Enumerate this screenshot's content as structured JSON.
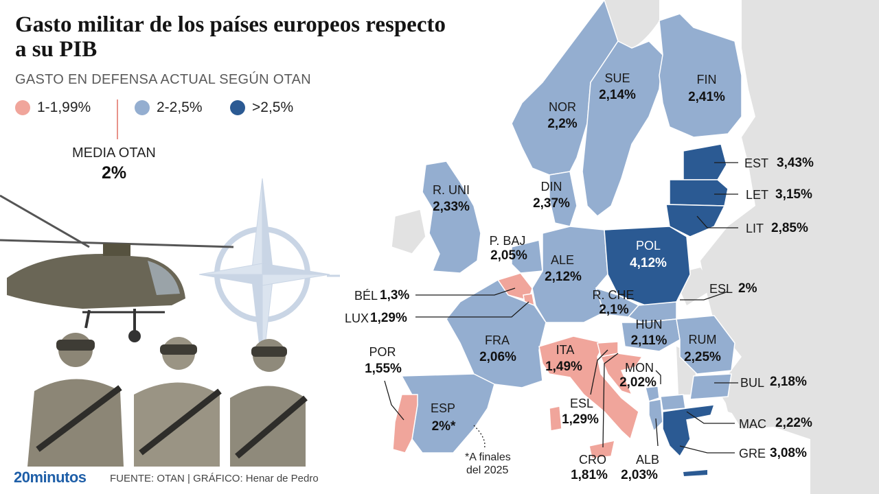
{
  "title": "Gasto militar de los países europeos respecto a su PIB",
  "subtitle": "GASTO EN DEFENSA ACTUAL SEGÚN OTAN",
  "legend": [
    {
      "label": "1-1,99%",
      "color": "#f0a59b"
    },
    {
      "label": "2-2,5%",
      "color": "#94aed0"
    },
    {
      "label": ">2,5%",
      "color": "#2b5a93"
    }
  ],
  "average": {
    "label": "MEDIA OTAN",
    "value": "2%"
  },
  "colors": {
    "low": "#f0a59b",
    "mid": "#94aed0",
    "high": "#2b5a93",
    "land": "#e2e2e2",
    "leader": "#1a1a1a"
  },
  "countries": [
    {
      "code": "NOR",
      "value": "2,2%",
      "category": "mid"
    },
    {
      "code": "SUE",
      "value": "2,14%",
      "category": "mid"
    },
    {
      "code": "FIN",
      "value": "2,41%",
      "category": "mid"
    },
    {
      "code": "EST",
      "value": "3,43%",
      "category": "high"
    },
    {
      "code": "LET",
      "value": "3,15%",
      "category": "high"
    },
    {
      "code": "LIT",
      "value": "2,85%",
      "category": "high"
    },
    {
      "code": "R. UNI",
      "value": "2,33%",
      "category": "mid"
    },
    {
      "code": "DIN",
      "value": "2,37%",
      "category": "mid"
    },
    {
      "code": "P. BAJ",
      "value": "2,05%",
      "category": "mid"
    },
    {
      "code": "ALE",
      "value": "2,12%",
      "category": "mid"
    },
    {
      "code": "POL",
      "value": "4,12%",
      "category": "high"
    },
    {
      "code": "BÉL",
      "value": "1,3%",
      "category": "low"
    },
    {
      "code": "LUX",
      "value": "1,29%",
      "category": "low"
    },
    {
      "code": "R. CHE",
      "value": "2,1%",
      "category": "mid"
    },
    {
      "code": "ESL",
      "value": "2%",
      "category": "mid"
    },
    {
      "code": "HUN",
      "value": "2,11%",
      "category": "mid"
    },
    {
      "code": "RUM",
      "value": "2,25%",
      "category": "mid"
    },
    {
      "code": "FRA",
      "value": "2,06%",
      "category": "mid"
    },
    {
      "code": "ITA",
      "value": "1,49%",
      "category": "low"
    },
    {
      "code": "POR",
      "value": "1,55%",
      "category": "low"
    },
    {
      "code": "ESP",
      "value": "2%*",
      "category": "mid"
    },
    {
      "code": "MON",
      "value": "2,02%",
      "category": "mid"
    },
    {
      "code": "BUL",
      "value": "2,18%",
      "category": "mid"
    },
    {
      "code": "ESL",
      "value": "1,29%",
      "category": "low"
    },
    {
      "code": "MAC",
      "value": "2,22%",
      "category": "mid"
    },
    {
      "code": "GRE",
      "value": "3,08%",
      "category": "high"
    },
    {
      "code": "CRO",
      "value": "1,81%",
      "category": "low"
    },
    {
      "code": "ALB",
      "value": "2,03%",
      "category": "mid"
    }
  ],
  "note": {
    "line1": "*A finales",
    "line2": "del 2025"
  },
  "footer": {
    "brand": "20minutos",
    "source": "FUENTE: OTAN  |  GRÁFICO: Henar de Pedro"
  }
}
